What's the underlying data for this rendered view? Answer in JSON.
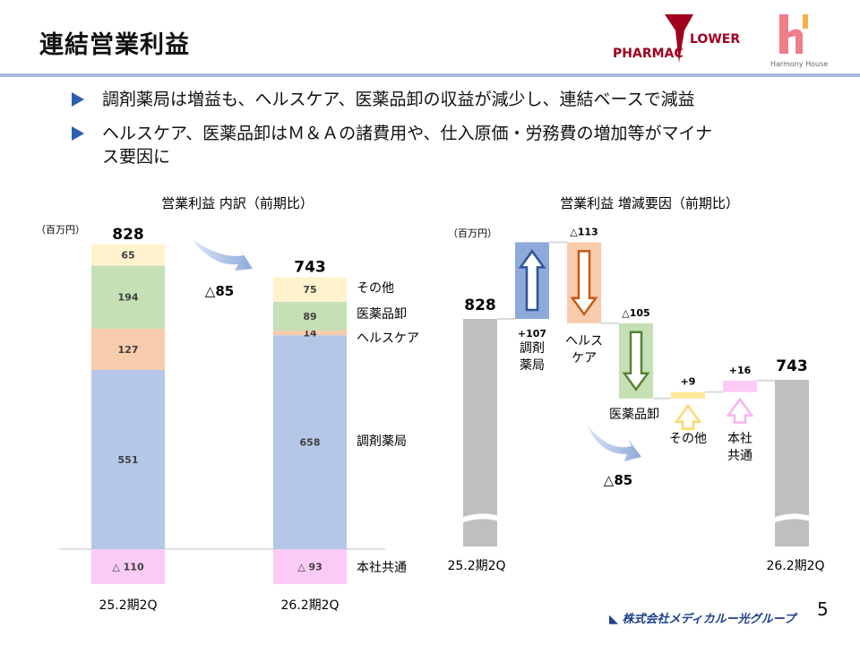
{
  "title": "連結営業利益",
  "logos": {
    "pharmacy": "PHARMAC FLOWER",
    "harmony": "Harmony House"
  },
  "bullets": [
    "調剤薬局は増益も、ヘルスケア、医薬品卸の収益が減少し、連結ベースで減益",
    "ヘルスケア、医薬品卸はＭ＆Ａの諸費用や、仕入原価・労務費の増加等がマイナス要因に"
  ],
  "colors": {
    "dispensing": "#b4c7e7",
    "healthcare": "#f8cbad",
    "wholesale": "#c5e0b4",
    "other": "#fff2cc",
    "hq": "#fbcbf5",
    "total": "#bfbfbf",
    "arrow_up": "#2f5597",
    "arrow_hc": "#c55a11",
    "arrow_ws": "#548235",
    "arrow_other": "#ffd966",
    "arrow_hq": "#f8b4f0"
  },
  "chart_data": [
    {
      "type": "bar",
      "stacked": true,
      "title": "営業利益 内訳（前期比）",
      "unit": "（百万円）",
      "categories": [
        "25.2期2Q",
        "26.2期2Q"
      ],
      "series": [
        {
          "name": "調剤薬局",
          "values": [
            551,
            658
          ]
        },
        {
          "name": "ヘルスケア",
          "values": [
            127,
            14
          ]
        },
        {
          "name": "医薬品卸",
          "values": [
            194,
            89
          ]
        },
        {
          "name": "その他",
          "values": [
            65,
            75
          ]
        },
        {
          "name": "本社共通",
          "values": [
            -110,
            -93
          ]
        }
      ],
      "value_labels": [
        [
          "551",
          "127",
          "194",
          "65",
          "△ 110"
        ],
        [
          "658",
          "14",
          "89",
          "75",
          "△ 93"
        ]
      ],
      "totals": [
        828,
        743
      ],
      "total_labels": [
        "828",
        "743"
      ],
      "change_label": "△85"
    },
    {
      "type": "waterfall",
      "title": "営業利益 増減要因（前期比）",
      "unit": "（百万円）",
      "start": {
        "label": "25.2期2Q",
        "value": 828,
        "value_label": "828"
      },
      "steps": [
        {
          "name": "調剤\n薬局",
          "value": 107,
          "value_label": "+107"
        },
        {
          "name": "ヘルス\nケア",
          "value": -113,
          "value_label": "△113"
        },
        {
          "name": "医薬品卸",
          "value": -105,
          "value_label": "△105"
        },
        {
          "name": "その他",
          "value": 9,
          "value_label": "+9"
        },
        {
          "name": "本社\n共通",
          "value": 16,
          "value_label": "+16"
        }
      ],
      "end": {
        "label": "26.2期2Q",
        "value": 743,
        "value_label": "743"
      },
      "change_label": "△85"
    }
  ],
  "footer": {
    "company": "株式会社メディカルー光グループ",
    "page": "5"
  }
}
